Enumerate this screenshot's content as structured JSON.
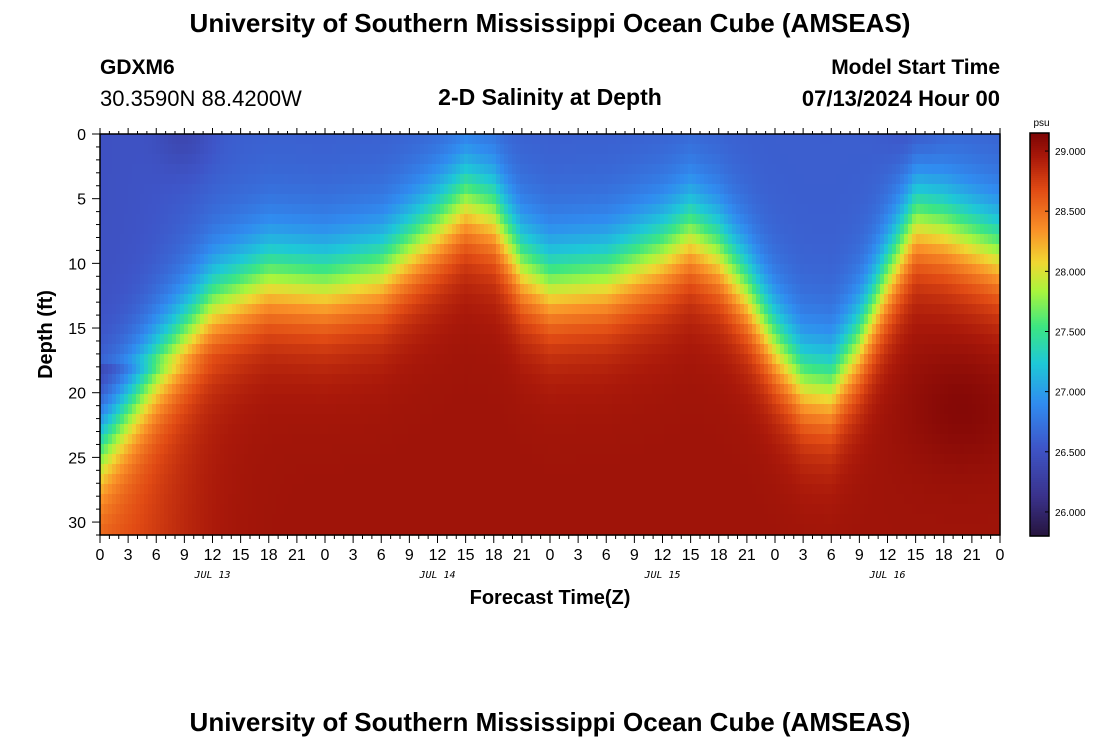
{
  "header": {
    "title": "University of Southern Mississippi Ocean Cube (AMSEAS)",
    "station_id": "GDXM6",
    "station_coords": "30.3590N  88.4200W",
    "subtitle": "2-D Salinity at Depth",
    "start_label": "Model Start Time",
    "start_value": "07/13/2024 Hour 00"
  },
  "footer": {
    "title": "University of Southern Mississippi Ocean Cube (AMSEAS)"
  },
  "chart_data": {
    "type": "heatmap",
    "title": "2-D Salinity at Depth",
    "xlabel": "Forecast Time(Z)",
    "ylabel": "Depth (ft)",
    "x_range_hours": [
      0,
      96
    ],
    "x_ticks": [
      {
        "hour": 0,
        "label": "0"
      },
      {
        "hour": 3,
        "label": "3"
      },
      {
        "hour": 6,
        "label": "6"
      },
      {
        "hour": 9,
        "label": "9"
      },
      {
        "hour": 12,
        "label": "12"
      },
      {
        "hour": 15,
        "label": "15"
      },
      {
        "hour": 18,
        "label": "18"
      },
      {
        "hour": 21,
        "label": "21"
      },
      {
        "hour": 24,
        "label": "0"
      },
      {
        "hour": 27,
        "label": "3"
      },
      {
        "hour": 30,
        "label": "6"
      },
      {
        "hour": 33,
        "label": "9"
      },
      {
        "hour": 36,
        "label": "12"
      },
      {
        "hour": 39,
        "label": "15"
      },
      {
        "hour": 42,
        "label": "18"
      },
      {
        "hour": 45,
        "label": "21"
      },
      {
        "hour": 48,
        "label": "0"
      },
      {
        "hour": 51,
        "label": "3"
      },
      {
        "hour": 54,
        "label": "6"
      },
      {
        "hour": 57,
        "label": "9"
      },
      {
        "hour": 60,
        "label": "12"
      },
      {
        "hour": 63,
        "label": "15"
      },
      {
        "hour": 66,
        "label": "18"
      },
      {
        "hour": 69,
        "label": "21"
      },
      {
        "hour": 72,
        "label": "0"
      },
      {
        "hour": 75,
        "label": "3"
      },
      {
        "hour": 78,
        "label": "6"
      },
      {
        "hour": 81,
        "label": "9"
      },
      {
        "hour": 84,
        "label": "12"
      },
      {
        "hour": 87,
        "label": "15"
      },
      {
        "hour": 90,
        "label": "18"
      },
      {
        "hour": 93,
        "label": "21"
      },
      {
        "hour": 96,
        "label": "0"
      }
    ],
    "day_labels": [
      {
        "hour": 12,
        "label": "JUL 13"
      },
      {
        "hour": 36,
        "label": "JUL 14"
      },
      {
        "hour": 60,
        "label": "JUL 15"
      },
      {
        "hour": 84,
        "label": "JUL 16"
      }
    ],
    "y_range_ft": [
      0,
      31
    ],
    "y_ticks": [
      0,
      5,
      10,
      15,
      20,
      25,
      30
    ],
    "colorbar": {
      "unit": "psu",
      "range": [
        25.8,
        29.15
      ],
      "ticks": [
        "26.000",
        "26.500",
        "27.000",
        "27.500",
        "28.000",
        "28.500",
        "29.000"
      ]
    },
    "surface_salinity_psu": 26.6,
    "bottom_salinity_psu": 29.0,
    "halocline_depth_ft": [
      {
        "hour": 0,
        "depth": 24
      },
      {
        "hour": 6,
        "depth": 18
      },
      {
        "hour": 12,
        "depth": 13
      },
      {
        "hour": 18,
        "depth": 11
      },
      {
        "hour": 24,
        "depth": 11.5
      },
      {
        "hour": 30,
        "depth": 10.5
      },
      {
        "hour": 36,
        "depth": 7
      },
      {
        "hour": 39,
        "depth": 5
      },
      {
        "hour": 42,
        "depth": 6
      },
      {
        "hour": 45,
        "depth": 10
      },
      {
        "hour": 48,
        "depth": 11.5
      },
      {
        "hour": 54,
        "depth": 11
      },
      {
        "hour": 60,
        "depth": 9
      },
      {
        "hour": 63,
        "depth": 7.5
      },
      {
        "hour": 66,
        "depth": 9
      },
      {
        "hour": 69,
        "depth": 12
      },
      {
        "hour": 72,
        "depth": 16
      },
      {
        "hour": 75,
        "depth": 19
      },
      {
        "hour": 78,
        "depth": 19.5
      },
      {
        "hour": 81,
        "depth": 16
      },
      {
        "hour": 84,
        "depth": 11
      },
      {
        "hour": 87,
        "depth": 6.5
      },
      {
        "hour": 90,
        "depth": 7
      },
      {
        "hour": 93,
        "depth": 8
      },
      {
        "hour": 96,
        "depth": 9
      }
    ]
  }
}
